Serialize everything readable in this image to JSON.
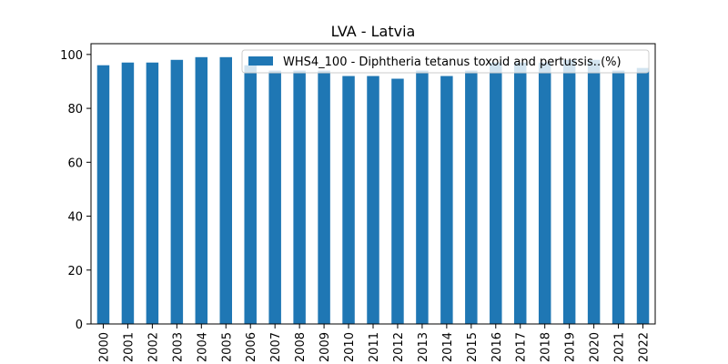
{
  "chart_data": {
    "type": "bar",
    "title": "LVA - Latvia",
    "xlabel": "",
    "ylabel": "",
    "categories": [
      "2000",
      "2001",
      "2002",
      "2003",
      "2004",
      "2005",
      "2006",
      "2007",
      "2008",
      "2009",
      "2010",
      "2011",
      "2012",
      "2013",
      "2014",
      "2015",
      "2016",
      "2017",
      "2018",
      "2019",
      "2020",
      "2021",
      "2022"
    ],
    "series": [
      {
        "name": "WHS4_100 - Diphtheria tetanus toxoid and pertussis..(%)",
        "color": "#1f77b4",
        "values": [
          96,
          97,
          97,
          98,
          99,
          99,
          96,
          94,
          94,
          94,
          92,
          92,
          91,
          94,
          92,
          94,
          97,
          97,
          97,
          98,
          98,
          94,
          95
        ]
      }
    ],
    "ylim": [
      0,
      104
    ],
    "yticks": [
      0,
      20,
      40,
      60,
      80,
      100
    ],
    "grid": false,
    "legend_position": "top-right"
  }
}
